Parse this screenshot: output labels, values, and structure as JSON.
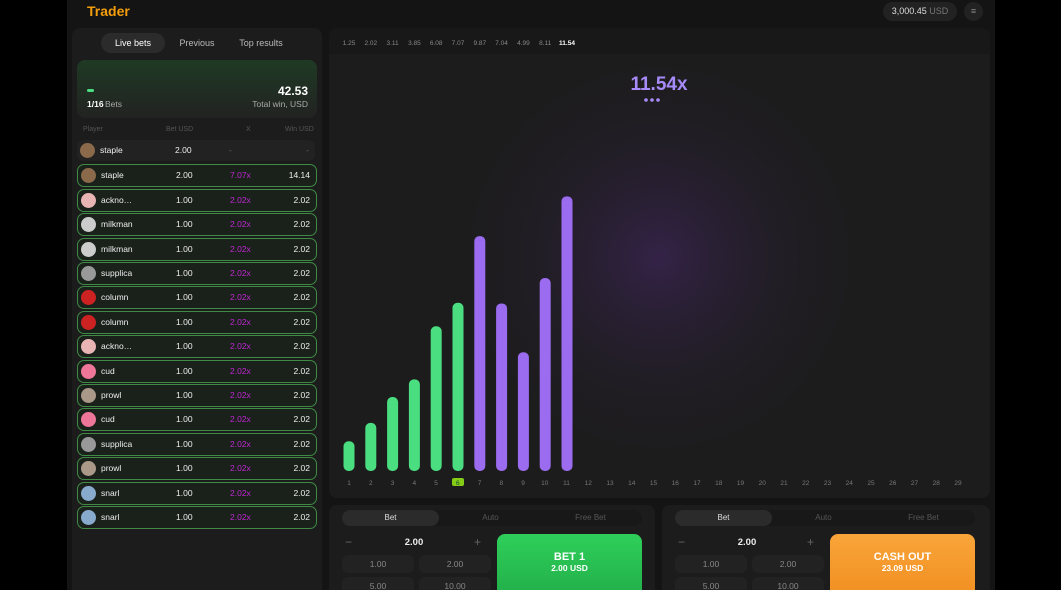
{
  "header": {
    "logo": "Trader",
    "balance": "3,000.45",
    "currency": "USD"
  },
  "live": {
    "tabs": [
      "Live bets",
      "Previous",
      "Top results"
    ],
    "summary": {
      "bets": "1/16",
      "bets_label": "Bets",
      "total": "42.53",
      "total_label": "Total win, USD"
    },
    "columns": [
      "Player",
      "Bet USD",
      "X",
      "Win USD"
    ],
    "rows": [
      [
        "staple",
        "2.00",
        "-",
        "-"
      ],
      [
        "staple",
        "2.00",
        "7.07x",
        "14.14"
      ],
      [
        "ackno…",
        "1.00",
        "2.02x",
        "2.02"
      ],
      [
        "milkman",
        "1.00",
        "2.02x",
        "2.02"
      ],
      [
        "milkman",
        "1.00",
        "2.02x",
        "2.02"
      ],
      [
        "supplica",
        "1.00",
        "2.02x",
        "2.02"
      ],
      [
        "column",
        "1.00",
        "2.02x",
        "2.02"
      ],
      [
        "column",
        "1.00",
        "2.02x",
        "2.02"
      ],
      [
        "ackno…",
        "1.00",
        "2.02x",
        "2.02"
      ],
      [
        "cud",
        "1.00",
        "2.02x",
        "2.02"
      ],
      [
        "prowl",
        "1.00",
        "2.02x",
        "2.02"
      ],
      [
        "cud",
        "1.00",
        "2.02x",
        "2.02"
      ],
      [
        "supplica",
        "1.00",
        "2.02x",
        "2.02"
      ],
      [
        "prowl",
        "1.00",
        "2.02x",
        "2.02"
      ],
      [
        "snarl",
        "1.00",
        "2.02x",
        "2.02"
      ],
      [
        "snarl",
        "1.00",
        "2.02x",
        "2.02"
      ]
    ]
  },
  "game": {
    "history": [
      1.25,
      2.02,
      3.11,
      3.85,
      6.08,
      7.07,
      9.87,
      7.04,
      4.99,
      8.11,
      11.54
    ],
    "current": "11.54x",
    "ticks": [
      1,
      2,
      3,
      4,
      5,
      6,
      7,
      8,
      9,
      10,
      11,
      12,
      13,
      14,
      15,
      16,
      17,
      18,
      19,
      20,
      21,
      22,
      23,
      24,
      25,
      26,
      27,
      28,
      29
    ]
  },
  "bets": [
    {
      "tabs": [
        "Bet",
        "Auto",
        "Free Bet"
      ],
      "amount": "2.00",
      "quick": [
        "1.00",
        "2.00",
        "5.00",
        "10.00"
      ],
      "button": "BET 1",
      "button_sub": "2.00 USD"
    },
    {
      "tabs": [
        "Bet",
        "Auto",
        "Free Bet"
      ],
      "amount": "2.00",
      "quick": [
        "1.00",
        "2.00",
        "5.00",
        "10.00"
      ],
      "button": "CASH OUT",
      "button_sub": "23.09 USD"
    }
  ]
}
